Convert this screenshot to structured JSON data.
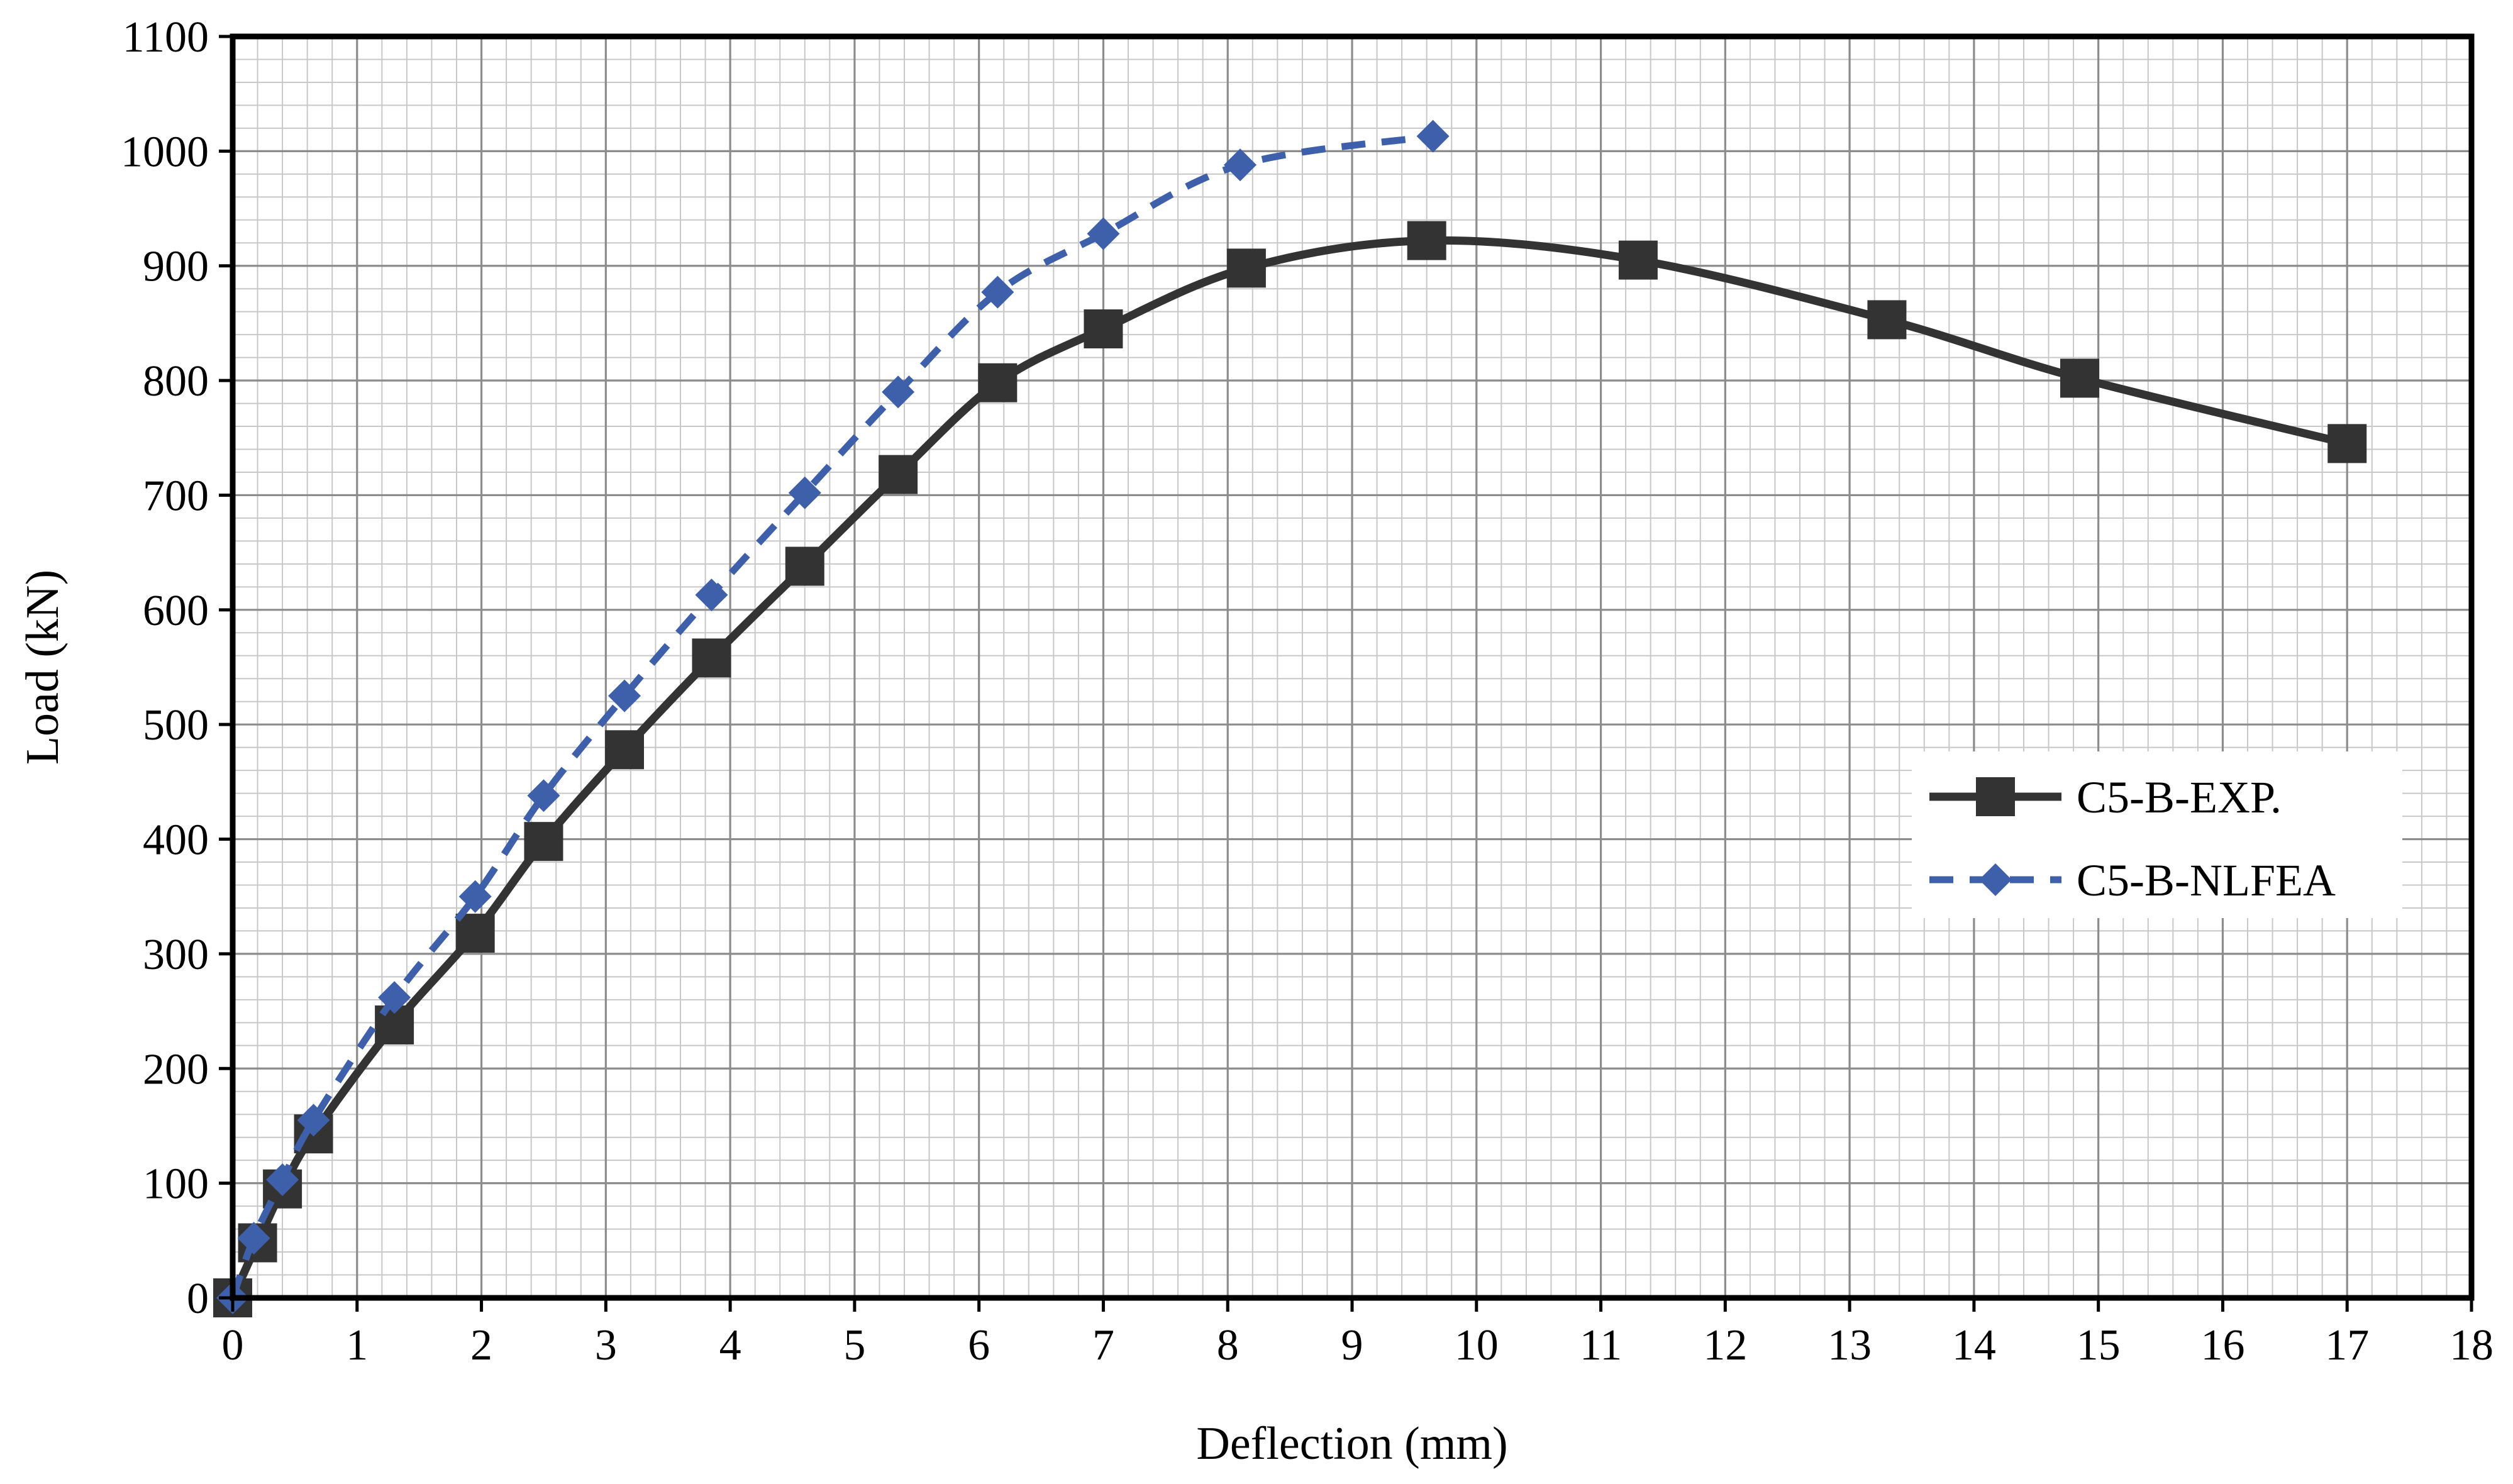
{
  "chart_data": {
    "type": "line",
    "title": "",
    "xlabel": "Deflection (mm)",
    "ylabel": "Load (kN)",
    "xlim": [
      0,
      18
    ],
    "ylim": [
      0,
      1100
    ],
    "xticks": [
      0,
      1,
      2,
      3,
      4,
      5,
      6,
      7,
      8,
      9,
      10,
      11,
      12,
      13,
      14,
      15,
      16,
      17,
      18
    ],
    "yticks": [
      0,
      100,
      200,
      300,
      400,
      500,
      600,
      700,
      800,
      900,
      1000,
      1100
    ],
    "major_grid_x": 1,
    "minor_grid_x": 0.2,
    "major_grid_y": 100,
    "minor_grid_y": 20,
    "legend_position": "center-right",
    "series": [
      {
        "name": "C5-B-EXP.",
        "color": "#333333",
        "line_style": "solid",
        "marker": "square",
        "x": [
          0,
          0.2,
          0.4,
          0.65,
          1.3,
          1.95,
          2.5,
          3.15,
          3.85,
          4.6,
          5.35,
          6.15,
          7.0,
          8.15,
          9.6,
          11.3,
          13.3,
          14.85,
          17.0
        ],
        "y": [
          0,
          48,
          95,
          143,
          238,
          318,
          398,
          478,
          558,
          638,
          718,
          798,
          845,
          898,
          922,
          905,
          853,
          802,
          745
        ]
      },
      {
        "name": "C5-B-NLFEA",
        "color": "#3E5FAA",
        "line_style": "dashed",
        "marker": "diamond",
        "x": [
          0,
          0.17,
          0.4,
          0.65,
          1.3,
          1.95,
          2.5,
          3.15,
          3.85,
          4.6,
          5.35,
          6.15,
          7.0,
          8.1,
          9.65
        ],
        "y": [
          0,
          52,
          103,
          155,
          262,
          350,
          438,
          525,
          613,
          702,
          790,
          877,
          928,
          988,
          1013
        ]
      }
    ]
  }
}
